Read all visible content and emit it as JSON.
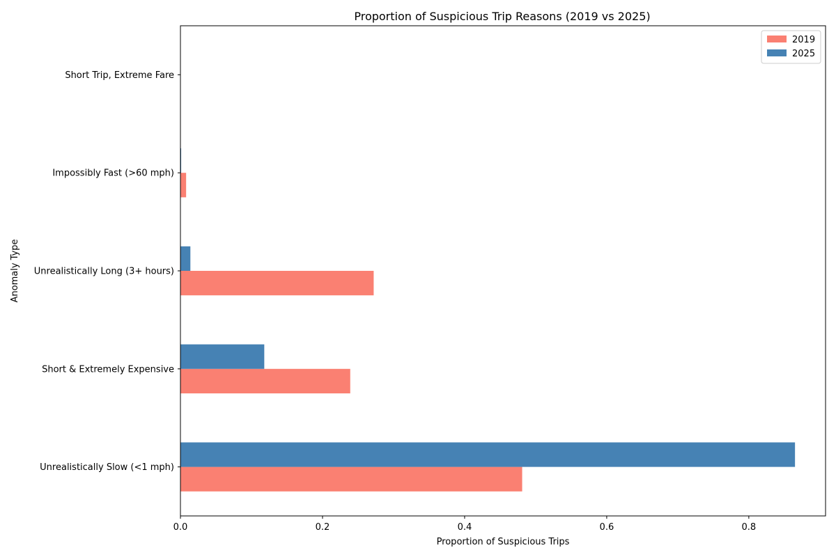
{
  "chart_data": {
    "type": "bar",
    "orientation": "horizontal",
    "title": "Proportion of Suspicious Trip Reasons (2019 vs 2025)",
    "xlabel": "Proportion of Suspicious Trips",
    "ylabel": "Anomaly Type",
    "categories": [
      "Unrealistically Slow (<1 mph)",
      "Short & Extremely Expensive",
      "Unrealistically Long (3+ hours)",
      "Impossibly Fast (>60 mph)",
      "Short Trip, Extreme Fare"
    ],
    "series": [
      {
        "name": "2019",
        "color": "#fa8072",
        "values": [
          0.481,
          0.239,
          0.272,
          0.008,
          0.0
        ]
      },
      {
        "name": "2025",
        "color": "#4682b4",
        "values": [
          0.865,
          0.118,
          0.014,
          0.001,
          0.0
        ]
      }
    ],
    "xlim": [
      0,
      0.908
    ],
    "xticks": [
      0.0,
      0.2,
      0.4,
      0.6,
      0.8
    ],
    "xtick_labels": [
      "0.0",
      "0.2",
      "0.4",
      "0.6",
      "0.8"
    ],
    "grid": false,
    "legend_position": "top-right"
  }
}
